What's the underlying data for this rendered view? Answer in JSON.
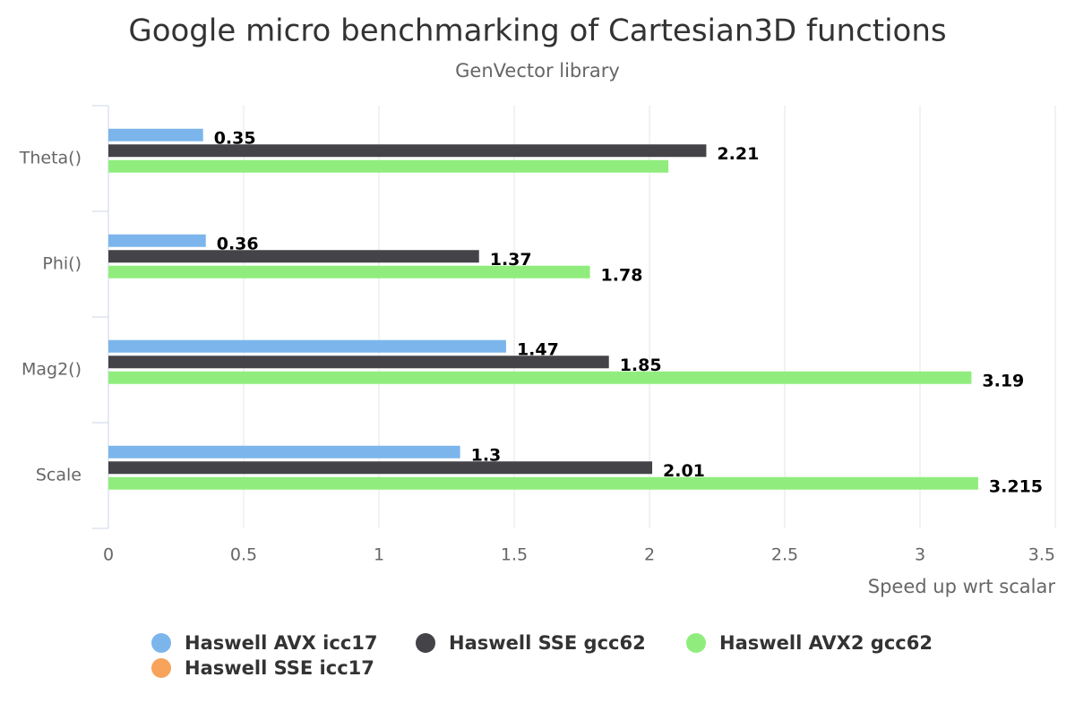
{
  "chart_data": {
    "type": "hbar",
    "title": "Google micro benchmarking of Cartesian3D functions",
    "subtitle": "GenVector library",
    "categories": [
      "Theta()",
      "Phi()",
      "Mag2()",
      "Scale"
    ],
    "series": [
      {
        "name": "Haswell AVX icc17",
        "color": "#7cb5ec",
        "values": [
          0.35,
          0.36,
          1.47,
          1.3
        ]
      },
      {
        "name": "Haswell SSE gcc62",
        "color": "#434348",
        "values": [
          2.21,
          1.37,
          1.85,
          2.01
        ]
      },
      {
        "name": "Haswell AVX2 gcc62",
        "color": "#90ed7d",
        "values": [
          2.07,
          1.78,
          3.19,
          3.215
        ],
        "value_labels": [
          null,
          "1.78",
          "3.19",
          "3.215"
        ]
      },
      {
        "name": "Haswell SSE icc17",
        "color": "#f7a35c",
        "values": [
          null,
          null,
          null,
          null
        ]
      }
    ],
    "xlabel": "Speed up wrt scalar",
    "xlim": [
      0,
      3.5
    ],
    "xticks": [
      0,
      0.5,
      1,
      1.5,
      2,
      2.5,
      3,
      3.5
    ],
    "grid": true
  }
}
